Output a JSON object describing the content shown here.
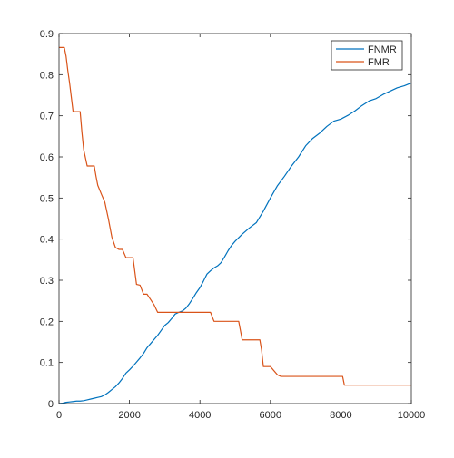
{
  "chart_data": {
    "type": "line",
    "title": "",
    "xlabel": "",
    "ylabel": "",
    "xlim": [
      0,
      10000
    ],
    "ylim": [
      0,
      0.9
    ],
    "x_ticks": [
      0,
      2000,
      4000,
      6000,
      8000,
      10000
    ],
    "y_ticks": [
      0,
      0.1,
      0.2,
      0.3,
      0.4,
      0.5,
      0.6,
      0.7,
      0.8,
      0.9
    ],
    "x_tick_labels": [
      "0",
      "2000",
      "4000",
      "6000",
      "8000",
      "10000"
    ],
    "y_tick_labels": [
      "0",
      "0.1",
      "0.2",
      "0.3",
      "0.4",
      "0.5",
      "0.6",
      "0.7",
      "0.8",
      "0.9"
    ],
    "grid": false,
    "legend_position": "top-right",
    "series": [
      {
        "name": "FNMR",
        "color": "#0072bd",
        "x": [
          0,
          100,
          200,
          300,
          400,
          500,
          600,
          700,
          800,
          900,
          1000,
          1100,
          1200,
          1300,
          1400,
          1500,
          1600,
          1700,
          1800,
          1900,
          2000,
          2100,
          2200,
          2300,
          2400,
          2500,
          2600,
          2700,
          2800,
          2900,
          3000,
          3100,
          3200,
          3300,
          3400,
          3500,
          3600,
          3700,
          3800,
          3900,
          4000,
          4100,
          4200,
          4300,
          4400,
          4500,
          4600,
          4700,
          4800,
          4900,
          5000,
          5200,
          5400,
          5600,
          5800,
          6000,
          6200,
          6400,
          6600,
          6800,
          7000,
          7200,
          7400,
          7600,
          7800,
          8000,
          8200,
          8400,
          8600,
          8800,
          9000,
          9200,
          9400,
          9600,
          9800,
          10000
        ],
        "y": [
          0,
          0.001,
          0.003,
          0.004,
          0.005,
          0.006,
          0.006,
          0.007,
          0.009,
          0.011,
          0.013,
          0.015,
          0.017,
          0.021,
          0.027,
          0.034,
          0.041,
          0.05,
          0.061,
          0.074,
          0.082,
          0.091,
          0.101,
          0.111,
          0.122,
          0.136,
          0.146,
          0.156,
          0.166,
          0.178,
          0.19,
          0.197,
          0.207,
          0.218,
          0.222,
          0.225,
          0.232,
          0.243,
          0.256,
          0.27,
          0.282,
          0.298,
          0.315,
          0.323,
          0.33,
          0.335,
          0.343,
          0.357,
          0.372,
          0.385,
          0.395,
          0.412,
          0.427,
          0.44,
          0.468,
          0.5,
          0.53,
          0.553,
          0.578,
          0.6,
          0.627,
          0.645,
          0.658,
          0.674,
          0.687,
          0.692,
          0.701,
          0.712,
          0.725,
          0.736,
          0.742,
          0.752,
          0.76,
          0.768,
          0.773,
          0.78
        ]
      },
      {
        "name": "FMR",
        "color": "#d95319",
        "x": [
          0,
          150,
          200,
          250,
          300,
          400,
          600,
          650,
          700,
          800,
          1000,
          1050,
          1100,
          1200,
          1300,
          1400,
          1500,
          1600,
          1700,
          1800,
          1900,
          2000,
          2100,
          2200,
          2300,
          2400,
          2500,
          2700,
          2800,
          3000,
          3200,
          4300,
          4400,
          5100,
          5200,
          5700,
          5750,
          5800,
          6000,
          6200,
          6300,
          8050,
          8100,
          10000
        ],
        "y": [
          0.866,
          0.866,
          0.845,
          0.81,
          0.78,
          0.71,
          0.71,
          0.66,
          0.618,
          0.578,
          0.578,
          0.553,
          0.531,
          0.51,
          0.49,
          0.45,
          0.405,
          0.38,
          0.375,
          0.375,
          0.355,
          0.355,
          0.355,
          0.29,
          0.288,
          0.266,
          0.266,
          0.24,
          0.222,
          0.222,
          0.222,
          0.222,
          0.2,
          0.2,
          0.155,
          0.155,
          0.13,
          0.09,
          0.09,
          0.07,
          0.066,
          0.066,
          0.045,
          0.045
        ]
      }
    ]
  }
}
